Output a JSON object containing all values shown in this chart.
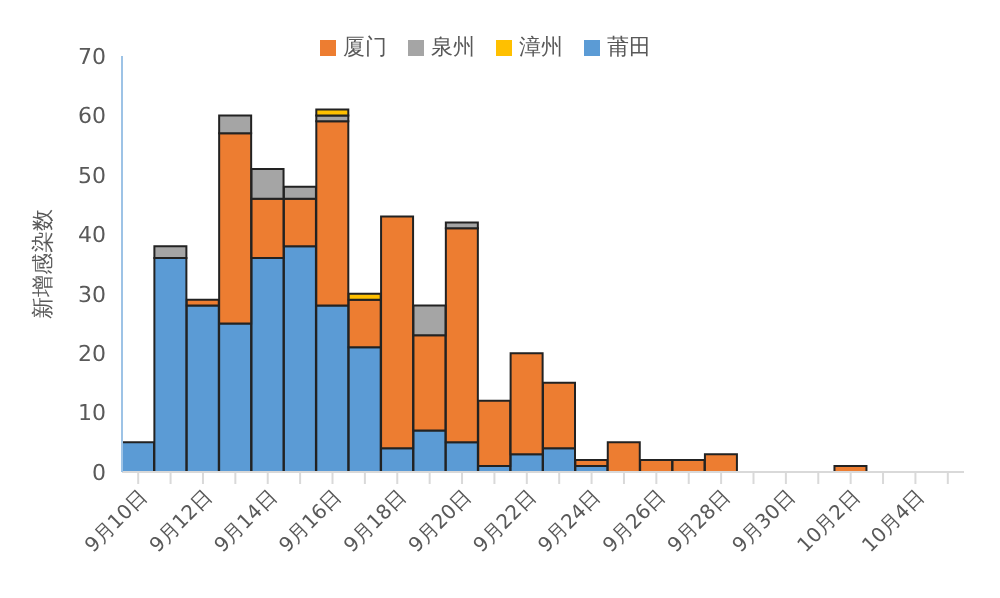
{
  "chart_data": {
    "type": "bar",
    "stacked": true,
    "ylabel": "新增感染数",
    "legend": "top",
    "grid": false,
    "categories": [
      "9月10日",
      null,
      "9月12日",
      null,
      "9月14日",
      null,
      "9月16日",
      null,
      "9月18日",
      null,
      "9月20日",
      null,
      "9月22日",
      null,
      "9月24日",
      null,
      "9月26日",
      null,
      "9月28日",
      null,
      "9月30日",
      null,
      "10月2日",
      null,
      "10月4日",
      null
    ],
    "ylim": [
      0,
      70
    ],
    "yticks": [
      0,
      10,
      20,
      30,
      40,
      50,
      60,
      70
    ],
    "series": [
      {
        "name": "莆田",
        "color": "#5b9bd5",
        "values": [
          5,
          36,
          28,
          25,
          36,
          38,
          28,
          21,
          4,
          7,
          5,
          1,
          3,
          4,
          1,
          0,
          0,
          0,
          0,
          0,
          0,
          0,
          0,
          0,
          0,
          0
        ]
      },
      {
        "name": "厦门",
        "color": "#ed7d31",
        "values": [
          0,
          0,
          1,
          32,
          10,
          8,
          31,
          8,
          39,
          16,
          36,
          11,
          17,
          11,
          1,
          5,
          2,
          2,
          3,
          0,
          0,
          0,
          1,
          0,
          0,
          0
        ]
      },
      {
        "name": "泉州",
        "color": "#a5a5a5",
        "values": [
          0,
          2,
          0,
          3,
          5,
          2,
          1,
          0,
          0,
          5,
          1,
          0,
          0,
          0,
          0,
          0,
          0,
          0,
          0,
          0,
          0,
          0,
          0,
          0,
          0,
          0
        ]
      },
      {
        "name": "漳州",
        "color": "#ffc000",
        "values": [
          0,
          0,
          0,
          0,
          0,
          0,
          1,
          1,
          0,
          0,
          0,
          0,
          0,
          0,
          0,
          0,
          0,
          0,
          0,
          0,
          0,
          0,
          0,
          0,
          0,
          0
        ]
      }
    ]
  }
}
